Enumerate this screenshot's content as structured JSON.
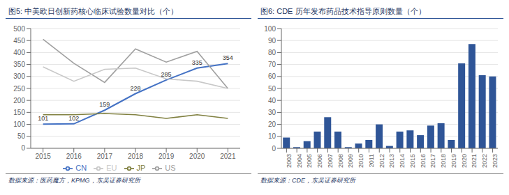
{
  "chart_data": [
    {
      "type": "line",
      "title": "图5: 中美欧日创新药核心临床试验数量对比（个）",
      "annotations": [
        "数据来源：医药魔方，KPMG，东吴证券研究所"
      ],
      "x": [
        2015,
        2016,
        2017,
        2018,
        2019,
        2020,
        2021
      ],
      "series": [
        {
          "name": "CN",
          "color": "#4472C4",
          "values": [
            101,
            102,
            159,
            228,
            285,
            335,
            354
          ],
          "data_labels": true
        },
        {
          "name": "US",
          "color": "#A0A0A0",
          "values": [
            455,
            355,
            275,
            415,
            360,
            405,
            250
          ]
        },
        {
          "name": "EU",
          "color": "#C8C8C8",
          "values": [
            340,
            280,
            330,
            335,
            290,
            280,
            250
          ]
        },
        {
          "name": "JP",
          "color": "#808040",
          "values": [
            140,
            140,
            145,
            140,
            125,
            140,
            125
          ]
        }
      ],
      "xlim": [
        2014.6,
        2021.4
      ],
      "xticks": [
        2015,
        2016,
        2017,
        2018,
        2019,
        2020,
        2021
      ],
      "ylim": [
        0,
        500
      ],
      "yticks": [
        0,
        50,
        100,
        150,
        200,
        250,
        300,
        350,
        400,
        450,
        500
      ],
      "grid": true,
      "legend": "bottom"
    },
    {
      "type": "bar",
      "title": "图6: CDE 历年发布药品技术指导原则数量（个）",
      "annotations": [
        "数据来源：CDE，东吴证券研究所"
      ],
      "categories": [
        "2003",
        "2004",
        "2005",
        "2006",
        "2007",
        "2008",
        "2009",
        "2010",
        "2011",
        "2012",
        "2013",
        "2014",
        "2015",
        "2016",
        "2017",
        "2018",
        "2019",
        "2020",
        "2021",
        "2022",
        "2023"
      ],
      "values": [
        9,
        1,
        6,
        14,
        26,
        14,
        1,
        4,
        7,
        20,
        2,
        14,
        15,
        11,
        19,
        21,
        7,
        71,
        87,
        61,
        60
      ],
      "color": "#2F5597",
      "ylim": [
        0,
        100
      ],
      "yticks": [
        0,
        10,
        20,
        30,
        40,
        50,
        60,
        70,
        80,
        90,
        100
      ],
      "grid": true
    }
  ]
}
